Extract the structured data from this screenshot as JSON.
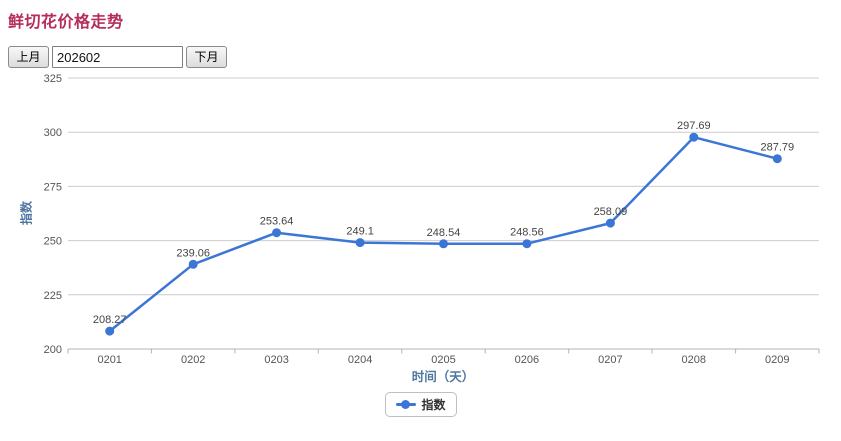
{
  "page": {
    "title": "鲜切花价格走势",
    "title_color": "#b52d5c"
  },
  "controls": {
    "prev_month_label": "上月",
    "month_value": "202602",
    "next_month_label": "下月"
  },
  "chart_data": {
    "type": "line",
    "categories": [
      "0201",
      "0202",
      "0203",
      "0204",
      "0205",
      "0206",
      "0207",
      "0208",
      "0209"
    ],
    "series": [
      {
        "name": "指数",
        "color": "#3b76d6",
        "values": [
          208.27,
          239.06,
          253.64,
          249.1,
          248.54,
          248.56,
          258.09,
          297.69,
          287.79
        ]
      }
    ],
    "xlabel": "时间（天）",
    "ylabel": "指数",
    "ylim": [
      200,
      325
    ],
    "yticks": [
      200,
      225,
      250,
      275,
      300,
      325
    ],
    "grid": true,
    "data_labels": true,
    "legend_position": "bottom",
    "colors": {
      "grid": "#cccccc",
      "axis_line": "#b3b3b3",
      "tick": "#b3b3b3",
      "tick_label": "#555555",
      "data_label": "#444444",
      "axis_title": "#4f77a2"
    }
  }
}
